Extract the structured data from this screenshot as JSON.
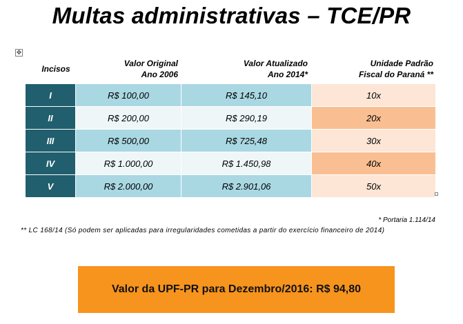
{
  "title": "Multas administrativas – TCE/PR",
  "headers": {
    "incisos": "Incisos",
    "valor_original": [
      "Valor Original",
      "Ano 2006"
    ],
    "valor_atualizado": [
      "Valor Atualizado",
      "Ano 2014*"
    ],
    "upf": [
      "Unidade Padrão",
      "Fiscal do Paraná **"
    ]
  },
  "rows": [
    {
      "inciso": "I",
      "original": "R$ 100,00",
      "atualizado": "R$ 145,10",
      "upf": "10x"
    },
    {
      "inciso": "II",
      "original": "R$ 200,00",
      "atualizado": "R$ 290,19",
      "upf": "20x"
    },
    {
      "inciso": "III",
      "original": "R$ 500,00",
      "atualizado": "R$ 725,48",
      "upf": "30x"
    },
    {
      "inciso": "IV",
      "original": "R$ 1.000,00",
      "atualizado": "R$ 1.450,98",
      "upf": "40x"
    },
    {
      "inciso": "V",
      "original": "R$ 2.000,00",
      "atualizado": "R$ 2.901,06",
      "upf": "50x"
    }
  ],
  "notes": {
    "portaria": "* Portaria 1.114/14",
    "lc": "** LC 168/14 (Só podem ser aplicadas para irregularidades cometidas a partir do exercício financeiro de 2014)"
  },
  "banner": "Valor da UPF-PR para Dezembro/2016: R$ 94,80",
  "colors": {
    "inciso_bg": "#215f6e",
    "value_dark": "#a9d8e3",
    "value_light": "#eef6f8",
    "upf_light": "#fde6d6",
    "upf_dark": "#f9bf92",
    "banner_bg": "#f7941d"
  }
}
